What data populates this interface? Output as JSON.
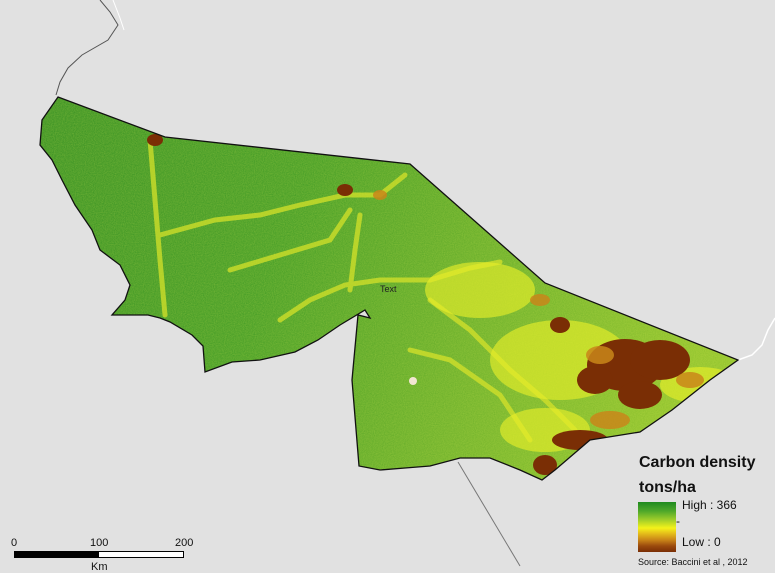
{
  "legend": {
    "title_line1": "Carbon density",
    "title_line2": "tons/ha",
    "high_label": "High : 366",
    "mid_label": "-",
    "low_label": "Low : 0"
  },
  "source_text": "Source: Baccini et al , 2012",
  "map_label": "Text",
  "scale": {
    "ticks": [
      "0",
      "100",
      "200"
    ],
    "unit": "Km"
  },
  "colors": {
    "background": "#e1e1e1",
    "high": "#1f8a1f",
    "mid": "#f4f21a",
    "low": "#7a2e05",
    "boundary": "#111111"
  }
}
